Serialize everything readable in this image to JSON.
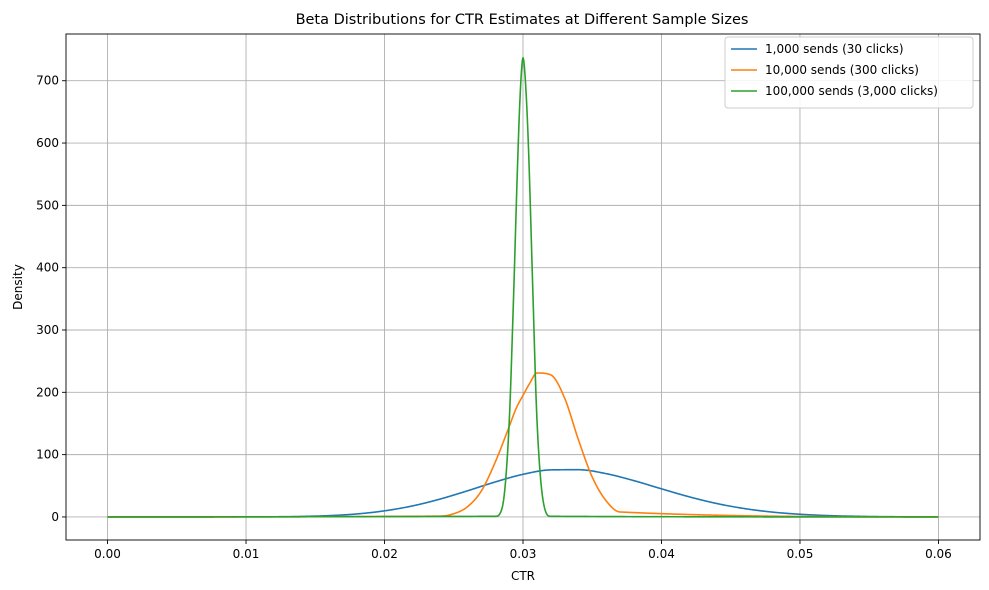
{
  "chart_data": {
    "type": "line",
    "title": "Beta Distributions for CTR Estimates at Different Sample Sizes",
    "xlabel": "CTR",
    "ylabel": "Density",
    "xlim": [
      -0.003,
      0.063
    ],
    "ylim": [
      -37,
      775
    ],
    "xticks": [
      0.0,
      0.01,
      0.02,
      0.03,
      0.04,
      0.05,
      0.06
    ],
    "xtick_labels": [
      "0.00",
      "0.01",
      "0.02",
      "0.03",
      "0.04",
      "0.05",
      "0.06"
    ],
    "yticks": [
      0,
      100,
      200,
      300,
      400,
      500,
      600,
      700
    ],
    "ytick_labels": [
      "0",
      "100",
      "200",
      "300",
      "400",
      "500",
      "600",
      "700"
    ],
    "grid": true,
    "legend_position": "top-right",
    "series": [
      {
        "name": "1,000 sends (30 clicks)",
        "color": "#1f77b4",
        "x": [
          0.0,
          0.012,
          0.014,
          0.016,
          0.018,
          0.02,
          0.022,
          0.024,
          0.026,
          0.028,
          0.03,
          0.032,
          0.034,
          0.036,
          0.038,
          0.04,
          0.042,
          0.044,
          0.046,
          0.048,
          0.05,
          0.052,
          0.055,
          0.06
        ],
        "y": [
          0,
          0.3,
          0.8,
          2.1,
          4.8,
          9.8,
          17.6,
          28.6,
          42.0,
          56.2,
          68.4,
          75.5,
          75.8,
          69.5,
          58.3,
          45.1,
          32.3,
          21.5,
          13.4,
          7.8,
          4.3,
          2.2,
          0.7,
          0.1
        ]
      },
      {
        "name": "10,000 sends (300 clicks)",
        "color": "#ff7f0e",
        "x": [
          0.0,
          0.024,
          0.025,
          0.026,
          0.027,
          0.028,
          0.029,
          0.0295,
          0.03,
          0.0305,
          0.031,
          0.032,
          0.033,
          0.034,
          0.035,
          0.036,
          0.037,
          0.06
        ],
        "y": [
          0,
          1.3,
          5.2,
          16.5,
          42.0,
          88.2,
          144.8,
          174.0,
          195.0,
          215.0,
          231.0,
          228.0,
          191.0,
          124.0,
          64.0,
          26.0,
          8.0,
          0
        ]
      },
      {
        "name": "100,000 sends (3,000 clicks)",
        "color": "#2ca02c",
        "x": [
          0.0,
          0.028,
          0.0285,
          0.029,
          0.0293,
          0.0296,
          0.0298,
          0.03,
          0.0302,
          0.0304,
          0.0307,
          0.031,
          0.0315,
          0.032,
          0.06
        ],
        "y": [
          0,
          1.0,
          15.0,
          150.0,
          340.0,
          560.0,
          680.0,
          737.0,
          690.0,
          590.0,
          370.0,
          160.0,
          20.0,
          1.0,
          0
        ]
      }
    ]
  }
}
